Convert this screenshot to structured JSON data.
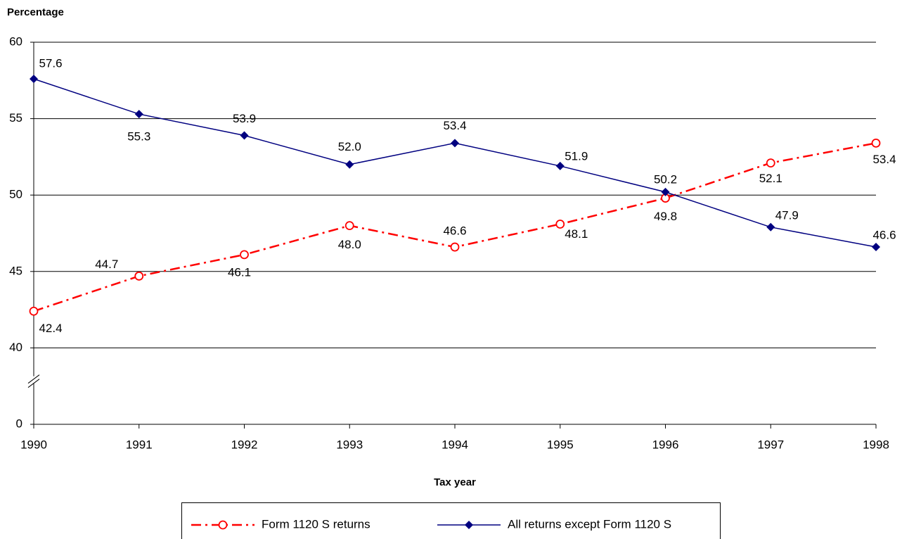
{
  "chart_data": {
    "type": "line",
    "y_axis_label": "Percentage",
    "x_axis_label": "Tax year",
    "categories": [
      "1990",
      "1991",
      "1992",
      "1993",
      "1994",
      "1995",
      "1996",
      "1997",
      "1998"
    ],
    "series": [
      {
        "name": "Form 1120 S returns",
        "color": "#ff0000",
        "style": "dash-dot",
        "marker": "hollow-circle",
        "values": [
          42.4,
          44.7,
          46.1,
          48.0,
          46.6,
          48.1,
          49.8,
          52.1,
          53.4
        ],
        "value_labels": [
          "42.4",
          "44.7",
          "46.1",
          "48.0",
          "46.6",
          "48.1",
          "49.8",
          "52.1",
          "53.4"
        ]
      },
      {
        "name": "All returns except Form 1120 S",
        "color": "#000080",
        "style": "solid",
        "marker": "diamond",
        "values": [
          57.6,
          55.3,
          53.9,
          52.0,
          53.4,
          51.9,
          50.2,
          47.9,
          46.6
        ],
        "value_labels": [
          "57.6",
          "55.3",
          "53.9",
          "52.0",
          "53.4",
          "51.9",
          "50.2",
          "47.9",
          "46.6"
        ]
      }
    ],
    "ylim": [
      0,
      60
    ],
    "yticks": [
      0,
      40,
      45,
      50,
      55,
      60
    ],
    "axis_break": true,
    "grid": true,
    "legend": "bottom"
  }
}
